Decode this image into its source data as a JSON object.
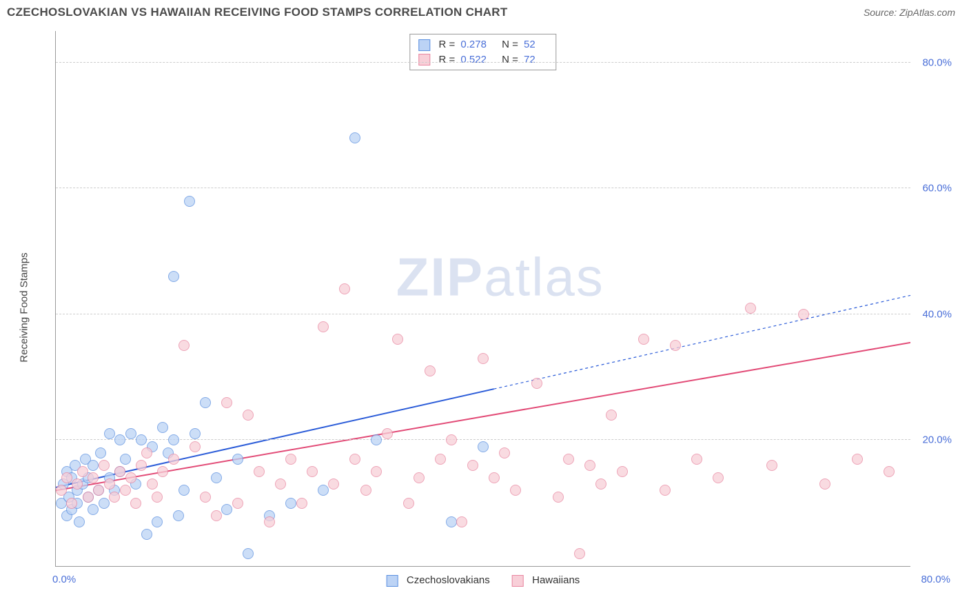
{
  "header": {
    "title": "CZECHOSLOVAKIAN VS HAWAIIAN RECEIVING FOOD STAMPS CORRELATION CHART",
    "source_prefix": "Source: ",
    "source": "ZipAtlas.com"
  },
  "chart": {
    "type": "scatter",
    "ylabel": "Receiving Food Stamps",
    "background_color": "#ffffff",
    "grid_color": "#cccccc",
    "axis_color": "#999999",
    "tick_label_color": "#4a6fd8",
    "xlim": [
      0,
      80
    ],
    "ylim": [
      0,
      85
    ],
    "yticks": [
      20,
      40,
      60,
      80
    ],
    "ytick_labels": [
      "20.0%",
      "40.0%",
      "60.0%",
      "80.0%"
    ],
    "xticks_labels": {
      "left": "0.0%",
      "right": "80.0%"
    },
    "watermark": {
      "bold": "ZIP",
      "rest": "atlas"
    },
    "marker_size": 16,
    "series": [
      {
        "id": "czech",
        "label": "Czechoslovakians",
        "fill": "#bcd3f5",
        "stroke": "#5b90e0",
        "r": 0.278,
        "n": 52,
        "trend": {
          "extent_x": 41,
          "color": "#2a5bd8",
          "dash_extrapolate": true,
          "end_y_at_80": 43,
          "start_y": 12.5,
          "width": 2
        },
        "points": [
          [
            0.5,
            10
          ],
          [
            0.7,
            13
          ],
          [
            1,
            8
          ],
          [
            1,
            15
          ],
          [
            1.2,
            11
          ],
          [
            1.5,
            9
          ],
          [
            1.5,
            14
          ],
          [
            1.8,
            16
          ],
          [
            2,
            12
          ],
          [
            2,
            10
          ],
          [
            2.2,
            7
          ],
          [
            2.5,
            13
          ],
          [
            2.8,
            17
          ],
          [
            3,
            11
          ],
          [
            3,
            14
          ],
          [
            3.5,
            9
          ],
          [
            3.5,
            16
          ],
          [
            4,
            12
          ],
          [
            4.2,
            18
          ],
          [
            4.5,
            10
          ],
          [
            5,
            21
          ],
          [
            5,
            14
          ],
          [
            5.5,
            12
          ],
          [
            6,
            20
          ],
          [
            6,
            15
          ],
          [
            6.5,
            17
          ],
          [
            7,
            21
          ],
          [
            7.5,
            13
          ],
          [
            8,
            20
          ],
          [
            8.5,
            5
          ],
          [
            9,
            19
          ],
          [
            9.5,
            7
          ],
          [
            10,
            22
          ],
          [
            10.5,
            18
          ],
          [
            11,
            46
          ],
          [
            11,
            20
          ],
          [
            11.5,
            8
          ],
          [
            12,
            12
          ],
          [
            12.5,
            58
          ],
          [
            13,
            21
          ],
          [
            14,
            26
          ],
          [
            15,
            14
          ],
          [
            16,
            9
          ],
          [
            17,
            17
          ],
          [
            18,
            2
          ],
          [
            20,
            8
          ],
          [
            22,
            10
          ],
          [
            25,
            12
          ],
          [
            28,
            68
          ],
          [
            30,
            20
          ],
          [
            37,
            7
          ],
          [
            40,
            19
          ]
        ]
      },
      {
        "id": "hawaiian",
        "label": "Hawaiians",
        "fill": "#f8cfd8",
        "stroke": "#e886a0",
        "r": 0.522,
        "n": 72,
        "trend": {
          "extent_x": 80,
          "color": "#e24a76",
          "dash_extrapolate": false,
          "end_y_at_80": 35.5,
          "start_y": 12,
          "width": 2
        },
        "points": [
          [
            0.5,
            12
          ],
          [
            1,
            14
          ],
          [
            1.5,
            10
          ],
          [
            2,
            13
          ],
          [
            2.5,
            15
          ],
          [
            3,
            11
          ],
          [
            3.5,
            14
          ],
          [
            4,
            12
          ],
          [
            4.5,
            16
          ],
          [
            5,
            13
          ],
          [
            5.5,
            11
          ],
          [
            6,
            15
          ],
          [
            6.5,
            12
          ],
          [
            7,
            14
          ],
          [
            7.5,
            10
          ],
          [
            8,
            16
          ],
          [
            8.5,
            18
          ],
          [
            9,
            13
          ],
          [
            9.5,
            11
          ],
          [
            10,
            15
          ],
          [
            11,
            17
          ],
          [
            12,
            35
          ],
          [
            13,
            19
          ],
          [
            14,
            11
          ],
          [
            15,
            8
          ],
          [
            16,
            26
          ],
          [
            17,
            10
          ],
          [
            18,
            24
          ],
          [
            19,
            15
          ],
          [
            20,
            7
          ],
          [
            21,
            13
          ],
          [
            22,
            17
          ],
          [
            23,
            10
          ],
          [
            24,
            15
          ],
          [
            25,
            38
          ],
          [
            26,
            13
          ],
          [
            27,
            44
          ],
          [
            28,
            17
          ],
          [
            29,
            12
          ],
          [
            30,
            15
          ],
          [
            31,
            21
          ],
          [
            32,
            36
          ],
          [
            33,
            10
          ],
          [
            34,
            14
          ],
          [
            35,
            31
          ],
          [
            36,
            17
          ],
          [
            37,
            20
          ],
          [
            38,
            7
          ],
          [
            39,
            16
          ],
          [
            40,
            33
          ],
          [
            41,
            14
          ],
          [
            42,
            18
          ],
          [
            43,
            12
          ],
          [
            45,
            29
          ],
          [
            47,
            11
          ],
          [
            48,
            17
          ],
          [
            49,
            2
          ],
          [
            50,
            16
          ],
          [
            51,
            13
          ],
          [
            52,
            24
          ],
          [
            53,
            15
          ],
          [
            55,
            36
          ],
          [
            57,
            12
          ],
          [
            58,
            35
          ],
          [
            60,
            17
          ],
          [
            62,
            14
          ],
          [
            65,
            41
          ],
          [
            67,
            16
          ],
          [
            70,
            40
          ],
          [
            72,
            13
          ],
          [
            75,
            17
          ],
          [
            78,
            15
          ]
        ]
      }
    ],
    "stats_box": {
      "r_label": "R =",
      "n_label": "N ="
    },
    "bottom_legend": {
      "items": [
        "Czechoslovakians",
        "Hawaiians"
      ]
    }
  }
}
